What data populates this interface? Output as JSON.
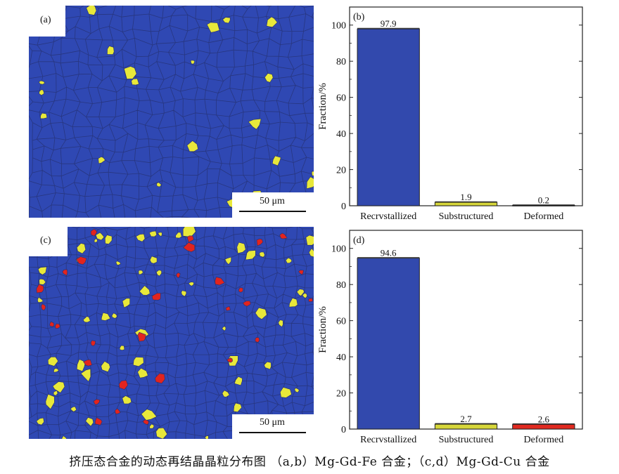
{
  "panels": {
    "a": {
      "label": "(a)",
      "scalebar": "50 μm"
    },
    "c": {
      "label": "(c)",
      "scalebar": "50 μm"
    }
  },
  "colors": {
    "recrystallized": "#2f48b3",
    "substructured": "#e8e83a",
    "deformed": "#e2241e",
    "grain_boundary": "#26306f",
    "micro_background": "#2f48b3"
  },
  "chart_data": [
    {
      "type": "bar",
      "panel_label": "(b)",
      "categories": [
        "Recrvstallized",
        "Substructured",
        "Deformed"
      ],
      "values": [
        97.9,
        1.9,
        0.2
      ],
      "value_labels": [
        "97.9",
        "1.9",
        "0.2"
      ],
      "bar_colors": [
        "#3249ad",
        "#d6d63a",
        "#2f2f6a"
      ],
      "xlabel": "",
      "ylabel": "Fraction/%",
      "ylim": [
        0,
        110
      ],
      "yticks": [
        0,
        20,
        40,
        60,
        80,
        100
      ],
      "grid": false
    },
    {
      "type": "bar",
      "panel_label": "(d)",
      "categories": [
        "Recrvstallized",
        "Substructured",
        "Deformed"
      ],
      "values": [
        94.6,
        2.7,
        2.6
      ],
      "value_labels": [
        "94.6",
        "2.7",
        "2.6"
      ],
      "bar_colors": [
        "#3249ad",
        "#d6d63a",
        "#e02a20"
      ],
      "xlabel": "",
      "ylabel": "Fraction/%",
      "ylim": [
        0,
        110
      ],
      "yticks": [
        0,
        20,
        40,
        60,
        80,
        100
      ],
      "grid": false
    }
  ],
  "caption": "挤压态合金的动态再结晶晶粒分布图 （a,b）Mg-Gd-Fe 合金；（c,d）Mg-Gd-Cu 合金"
}
